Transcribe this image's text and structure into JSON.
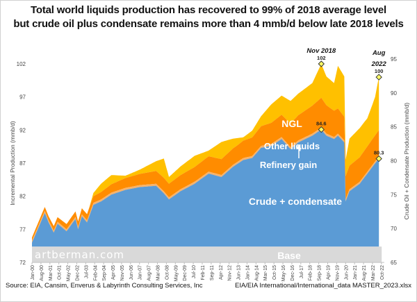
{
  "title_line1": "Total world liquids production has recovered to 99% of 2018 average level",
  "title_line2": "but crude oil plus condensate remains more than 4 mmb/d below late 2018 levels",
  "source_left": "Source: EIA, Cansim, Enverus &  Labyrinth Consulting Services, Inc",
  "source_right": "EIA/EIA International/International_data MASTER_2023.xlsx",
  "watermark": "artberman.com",
  "chart_data": {
    "type": "area",
    "stacked": true,
    "ylabel": "Incremental Production (mmb/d)",
    "ylabel_right": "Crude Oil + Condensate Production (mmb/d)",
    "ylim": [
      72,
      102
    ],
    "ylim_right": [
      65,
      95
    ],
    "yticks": [
      72,
      77,
      82,
      87,
      92,
      97,
      102
    ],
    "yticks_right": [
      65,
      70,
      75,
      80,
      85,
      90,
      95
    ],
    "xtick_labels": [
      "Jan-00",
      "Aug-00",
      "Mar-01",
      "Oct-01",
      "May-02",
      "Dec-02",
      "Jul-03",
      "Feb-04",
      "Sep-04",
      "Apr-05",
      "Nov-05",
      "Jun-06",
      "Jan-07",
      "Aug-07",
      "Mar-08",
      "Oct-08",
      "May-09",
      "Dec-09",
      "Jul-10",
      "Feb-11",
      "Sep-11",
      "Apr-12",
      "Nov-12",
      "Jun-13",
      "Jan-14",
      "Aug-14",
      "Mar-15",
      "Oct-15",
      "May-16",
      "Dec-16",
      "Jul-17",
      "Feb-18",
      "Sep-18",
      "Apr-19",
      "Nov-19",
      "Jun-20",
      "Jan-21",
      "Aug-21",
      "Mar-22",
      "Oct-22"
    ],
    "grid": false,
    "base_top": 74.4,
    "series_labels": {
      "ngl": "NGL",
      "other": "Other liquids",
      "refinery": "Refinery gain",
      "crude": "Crude + condensate",
      "base": "Base"
    },
    "colors": {
      "crude": "#5b9bd5",
      "refinery": "#f6b26b",
      "other": "#ff8c00",
      "ngl": "#ffc000",
      "base": "#d9d9d9"
    },
    "dates": [
      "2000-01",
      "2000-11",
      "2001-02",
      "2001-06",
      "2001-09",
      "2002-04",
      "2002-11",
      "2003-01",
      "2003-04",
      "2003-08",
      "2004-01",
      "2004-07",
      "2005-03",
      "2006-02",
      "2007-01",
      "2008-02",
      "2008-08",
      "2008-12",
      "2009-09",
      "2010-08",
      "2011-07",
      "2012-05",
      "2013-02",
      "2013-10",
      "2014-05",
      "2014-12",
      "2015-08",
      "2016-04",
      "2016-11",
      "2017-05",
      "2018-04",
      "2018-11",
      "2019-03",
      "2019-09",
      "2019-12",
      "2020-05",
      "2020-06",
      "2020-09",
      "2021-05",
      "2021-11",
      "2022-03",
      "2022-05",
      "2022-08"
    ],
    "crude_right_axis": [
      67.9,
      72.3,
      70.9,
      69.4,
      70.7,
      69.6,
      71.4,
      69.9,
      71.8,
      70.9,
      73.5,
      74.0,
      75.0,
      75.7,
      76.1,
      76.3,
      75.2,
      74.3,
      75.5,
      76.6,
      78.1,
      77.6,
      79.1,
      80.1,
      80.4,
      81.9,
      82.2,
      83.2,
      81.7,
      82.7,
      83.7,
      84.6,
      83.7,
      83.2,
      83.7,
      82.7,
      74.0,
      75.5,
      76.6,
      78.1,
      79.1,
      79.6,
      80.3
    ],
    "total_liquids": [
      75.7,
      80.0,
      78.6,
      77.0,
      78.6,
      77.6,
      79.7,
      77.9,
      80.2,
      79.1,
      82.5,
      83.9,
      85.2,
      85.1,
      86.0,
      87.3,
      87.7,
      84.9,
      86.5,
      88.1,
      88.9,
      90.2,
      90.7,
      90.9,
      91.9,
      94.1,
      95.9,
      97.2,
      96.4,
      97.5,
      99.1,
      102,
      100.1,
      99.1,
      101.7,
      100.1,
      87.5,
      90.7,
      92.3,
      93.8,
      95.9,
      97.0,
      100
    ],
    "other_liquids": {
      "dates": [
        "2000-01",
        "2004-01",
        "2008-05",
        "2013-05",
        "2016-09",
        "2018-11",
        "2020-06",
        "2022-08"
      ],
      "values": [
        0.5,
        1.0,
        2.0,
        2.5,
        3.5,
        4.5,
        3.5,
        4.0
      ]
    },
    "refinery_gain": {
      "dates": [
        "2000-01",
        "2022-08"
      ],
      "values": [
        0.3,
        0.3
      ]
    },
    "annotations": [
      {
        "date": "2018-11",
        "value": 102,
        "axis": "left",
        "label": "102",
        "title": "Nov 2018"
      },
      {
        "date": "2018-11",
        "value": 84.6,
        "axis": "right",
        "label": "84.6"
      },
      {
        "date": "2022-08",
        "value": 100,
        "axis": "left",
        "label": "100",
        "title_line1": "Aug",
        "title_line2": "2022"
      },
      {
        "date": "2022-08",
        "value": 80.3,
        "axis": "right",
        "label": "80.3"
      }
    ]
  }
}
